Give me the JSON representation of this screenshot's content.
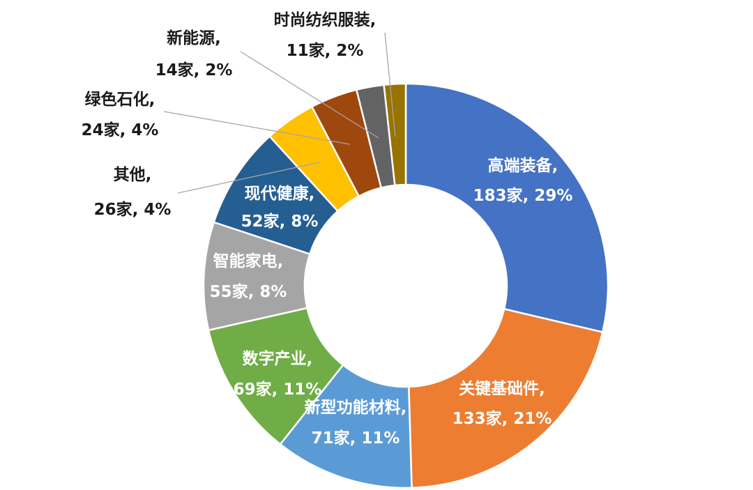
{
  "chart_data": {
    "type": "donut",
    "title": "",
    "legend": "none",
    "segments": [
      {
        "name": "高端装备",
        "count": "183家",
        "percent": "29%",
        "value": 183,
        "color": "#4472C4",
        "label_pos": "inside"
      },
      {
        "name": "关键基础件",
        "count": "133家",
        "percent": "21%",
        "value": 133,
        "color": "#ED7D31",
        "label_pos": "inside"
      },
      {
        "name": "新型功能材料",
        "count": "71家",
        "percent": "11%",
        "value": 71,
        "color": "#5B9BD5",
        "label_pos": "inside"
      },
      {
        "name": "数字产业",
        "count": "69家",
        "percent": "11%",
        "value": 69,
        "color": "#70AD47",
        "label_pos": "inside"
      },
      {
        "name": "智能家电",
        "count": "55家",
        "percent": "8%",
        "value": 55,
        "color": "#A5A5A5",
        "label_pos": "inside"
      },
      {
        "name": "现代健康",
        "count": "52家",
        "percent": "8%",
        "value": 52,
        "color": "#255E91",
        "label_pos": "inside"
      },
      {
        "name": "其他",
        "count": "26家",
        "percent": "4%",
        "value": 26,
        "color": "#FFC000",
        "label_pos": "outside"
      },
      {
        "name": "绿色石化",
        "count": "24家",
        "percent": "4%",
        "value": 24,
        "color": "#9E480E",
        "label_pos": "outside"
      },
      {
        "name": "新能源",
        "count": "14家",
        "percent": "2%",
        "value": 14,
        "color": "#636363",
        "label_pos": "outside"
      },
      {
        "name": "时尚纺织服装",
        "count": "11家",
        "percent": "2%",
        "value": 11,
        "color": "#997300",
        "label_pos": "outside"
      }
    ]
  }
}
